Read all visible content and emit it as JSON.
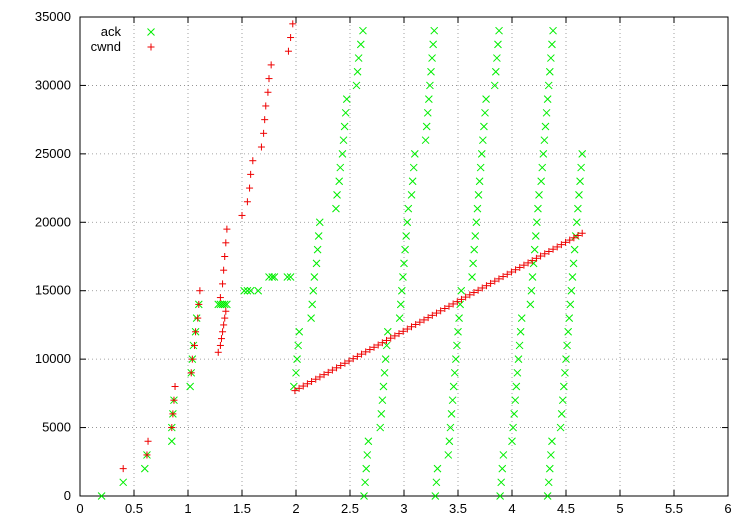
{
  "chart_data": {
    "type": "scatter",
    "xlim": [
      0,
      6
    ],
    "ylim": [
      0,
      35000
    ],
    "x_ticks": [
      "0",
      "0.5",
      "1",
      "1.5",
      "2",
      "2.5",
      "3",
      "3.5",
      "4",
      "4.5",
      "5",
      "5.5",
      "6"
    ],
    "y_ticks": [
      "0",
      "5000",
      "10000",
      "15000",
      "20000",
      "25000",
      "30000",
      "35000"
    ],
    "grid": true,
    "legend_position": "top-left",
    "series": [
      {
        "name": "ack",
        "marker": "x",
        "color": "#00ee00",
        "points": [
          [
            0.2,
            0
          ],
          [
            0.4,
            1000
          ],
          [
            0.6,
            2000
          ],
          [
            0.62,
            3000
          ],
          [
            0.85,
            4000
          ],
          [
            0.85,
            5000
          ],
          [
            0.86,
            6000
          ],
          [
            0.87,
            7000
          ],
          [
            1.02,
            8000
          ],
          [
            1.03,
            9000
          ],
          [
            1.04,
            10000
          ],
          [
            1.05,
            11000
          ],
          [
            1.07,
            12000
          ],
          [
            1.08,
            13000
          ],
          [
            1.1,
            14000
          ],
          [
            1.28,
            14000
          ],
          [
            1.3,
            14000
          ],
          [
            1.32,
            14000
          ],
          [
            1.34,
            14000
          ],
          [
            1.36,
            14000
          ],
          [
            1.52,
            15000
          ],
          [
            1.55,
            15000
          ],
          [
            1.58,
            15000
          ],
          [
            1.65,
            15000
          ],
          [
            1.75,
            16000
          ],
          [
            1.78,
            16000
          ],
          [
            1.8,
            16000
          ],
          [
            1.92,
            16000
          ],
          [
            1.95,
            16000
          ],
          [
            1.98,
            8000
          ],
          [
            2.0,
            9000
          ],
          [
            2.01,
            10000
          ],
          [
            2.02,
            11000
          ],
          [
            2.03,
            12000
          ],
          [
            2.14,
            13000
          ],
          [
            2.15,
            14000
          ],
          [
            2.16,
            15000
          ],
          [
            2.17,
            16000
          ],
          [
            2.19,
            17000
          ],
          [
            2.2,
            18000
          ],
          [
            2.21,
            19000
          ],
          [
            2.22,
            20000
          ],
          [
            2.37,
            21000
          ],
          [
            2.38,
            22000
          ],
          [
            2.4,
            23000
          ],
          [
            2.41,
            24000
          ],
          [
            2.43,
            25000
          ],
          [
            2.44,
            26000
          ],
          [
            2.45,
            27000
          ],
          [
            2.46,
            28000
          ],
          [
            2.47,
            29000
          ],
          [
            2.56,
            30000
          ],
          [
            2.57,
            31000
          ],
          [
            2.58,
            32000
          ],
          [
            2.6,
            33000
          ],
          [
            2.62,
            34000
          ],
          [
            2.63,
            0
          ],
          [
            2.64,
            1000
          ],
          [
            2.65,
            2000
          ],
          [
            2.66,
            3000
          ],
          [
            2.67,
            4000
          ],
          [
            2.78,
            5000
          ],
          [
            2.79,
            6000
          ],
          [
            2.8,
            7000
          ],
          [
            2.81,
            8000
          ],
          [
            2.82,
            9000
          ],
          [
            2.83,
            10000
          ],
          [
            2.84,
            11000
          ],
          [
            2.85,
            12000
          ],
          [
            2.96,
            13000
          ],
          [
            2.97,
            14000
          ],
          [
            2.98,
            15000
          ],
          [
            2.99,
            16000
          ],
          [
            3.0,
            17000
          ],
          [
            3.01,
            18000
          ],
          [
            3.02,
            19000
          ],
          [
            3.03,
            20000
          ],
          [
            3.04,
            21000
          ],
          [
            3.07,
            22000
          ],
          [
            3.08,
            23000
          ],
          [
            3.09,
            24000
          ],
          [
            3.1,
            25000
          ],
          [
            3.2,
            26000
          ],
          [
            3.21,
            27000
          ],
          [
            3.22,
            28000
          ],
          [
            3.23,
            29000
          ],
          [
            3.24,
            30000
          ],
          [
            3.25,
            31000
          ],
          [
            3.26,
            32000
          ],
          [
            3.27,
            33000
          ],
          [
            3.28,
            34000
          ],
          [
            3.29,
            0
          ],
          [
            3.3,
            1000
          ],
          [
            3.31,
            2000
          ],
          [
            3.41,
            3000
          ],
          [
            3.42,
            4000
          ],
          [
            3.43,
            5000
          ],
          [
            3.44,
            6000
          ],
          [
            3.45,
            7000
          ],
          [
            3.46,
            8000
          ],
          [
            3.47,
            9000
          ],
          [
            3.48,
            10000
          ],
          [
            3.49,
            11000
          ],
          [
            3.5,
            12000
          ],
          [
            3.51,
            13000
          ],
          [
            3.52,
            14000
          ],
          [
            3.53,
            15000
          ],
          [
            3.63,
            16000
          ],
          [
            3.64,
            17000
          ],
          [
            3.65,
            18000
          ],
          [
            3.66,
            19000
          ],
          [
            3.67,
            20000
          ],
          [
            3.68,
            21000
          ],
          [
            3.69,
            22000
          ],
          [
            3.7,
            23000
          ],
          [
            3.71,
            24000
          ],
          [
            3.72,
            25000
          ],
          [
            3.73,
            26000
          ],
          [
            3.74,
            27000
          ],
          [
            3.75,
            28000
          ],
          [
            3.76,
            29000
          ],
          [
            3.84,
            30000
          ],
          [
            3.85,
            31000
          ],
          [
            3.86,
            32000
          ],
          [
            3.87,
            33000
          ],
          [
            3.88,
            34000
          ],
          [
            3.89,
            0
          ],
          [
            3.9,
            1000
          ],
          [
            3.91,
            2000
          ],
          [
            3.92,
            3000
          ],
          [
            4.0,
            4000
          ],
          [
            4.01,
            5000
          ],
          [
            4.02,
            6000
          ],
          [
            4.03,
            7000
          ],
          [
            4.04,
            8000
          ],
          [
            4.05,
            9000
          ],
          [
            4.06,
            10000
          ],
          [
            4.07,
            11000
          ],
          [
            4.08,
            12000
          ],
          [
            4.09,
            13000
          ],
          [
            4.17,
            14000
          ],
          [
            4.18,
            15000
          ],
          [
            4.19,
            16000
          ],
          [
            4.2,
            17000
          ],
          [
            4.21,
            18000
          ],
          [
            4.22,
            19000
          ],
          [
            4.23,
            20000
          ],
          [
            4.24,
            21000
          ],
          [
            4.25,
            22000
          ],
          [
            4.27,
            23000
          ],
          [
            4.28,
            24000
          ],
          [
            4.29,
            25000
          ],
          [
            4.3,
            26000
          ],
          [
            4.31,
            27000
          ],
          [
            4.32,
            28000
          ],
          [
            4.33,
            29000
          ],
          [
            4.34,
            30000
          ],
          [
            4.35,
            31000
          ],
          [
            4.36,
            32000
          ],
          [
            4.37,
            33000
          ],
          [
            4.38,
            34000
          ],
          [
            4.33,
            0
          ],
          [
            4.34,
            1000
          ],
          [
            4.35,
            2000
          ],
          [
            4.36,
            3000
          ],
          [
            4.37,
            4000
          ],
          [
            4.45,
            5000
          ],
          [
            4.46,
            6000
          ],
          [
            4.47,
            7000
          ],
          [
            4.48,
            8000
          ],
          [
            4.49,
            9000
          ],
          [
            4.5,
            10000
          ],
          [
            4.51,
            11000
          ],
          [
            4.52,
            12000
          ],
          [
            4.53,
            13000
          ],
          [
            4.54,
            14000
          ],
          [
            4.55,
            15000
          ],
          [
            4.56,
            16000
          ],
          [
            4.57,
            17000
          ],
          [
            4.58,
            18000
          ],
          [
            4.59,
            19000
          ],
          [
            4.6,
            20000
          ],
          [
            4.61,
            21000
          ],
          [
            4.62,
            22000
          ],
          [
            4.63,
            23000
          ],
          [
            4.64,
            24000
          ],
          [
            4.65,
            25000
          ]
        ]
      },
      {
        "name": "cwnd",
        "marker": "+",
        "color": "#ee0000",
        "points": [
          [
            0.4,
            2000
          ],
          [
            0.62,
            3000
          ],
          [
            0.63,
            4000
          ],
          [
            0.85,
            5000
          ],
          [
            0.86,
            6000
          ],
          [
            0.87,
            7000
          ],
          [
            0.88,
            8000
          ],
          [
            1.03,
            9000
          ],
          [
            1.04,
            10000
          ],
          [
            1.06,
            11000
          ],
          [
            1.07,
            12000
          ],
          [
            1.09,
            13000
          ],
          [
            1.1,
            14000
          ],
          [
            1.11,
            15000
          ],
          [
            1.28,
            10500
          ],
          [
            1.3,
            11000
          ],
          [
            1.31,
            11500
          ],
          [
            1.32,
            12000
          ],
          [
            1.33,
            12500
          ],
          [
            1.34,
            13000
          ],
          [
            1.35,
            13500
          ],
          [
            1.3,
            14500
          ],
          [
            1.32,
            15500
          ],
          [
            1.33,
            16500
          ],
          [
            1.34,
            17500
          ],
          [
            1.35,
            18500
          ],
          [
            1.36,
            19500
          ],
          [
            1.5,
            20500
          ],
          [
            1.55,
            21500
          ],
          [
            1.57,
            22500
          ],
          [
            1.58,
            23500
          ],
          [
            1.6,
            24500
          ],
          [
            1.68,
            25500
          ],
          [
            1.7,
            26500
          ],
          [
            1.71,
            27500
          ],
          [
            1.72,
            28500
          ],
          [
            1.74,
            29500
          ],
          [
            1.75,
            30500
          ],
          [
            1.77,
            31500
          ],
          [
            1.93,
            32500
          ],
          [
            1.95,
            33500
          ],
          [
            1.97,
            34500
          ]
        ],
        "linear_segment": {
          "x_start": 1.99,
          "y_start": 7700,
          "x_end": 4.65,
          "y_end": 19200,
          "count": 70
        }
      }
    ]
  }
}
